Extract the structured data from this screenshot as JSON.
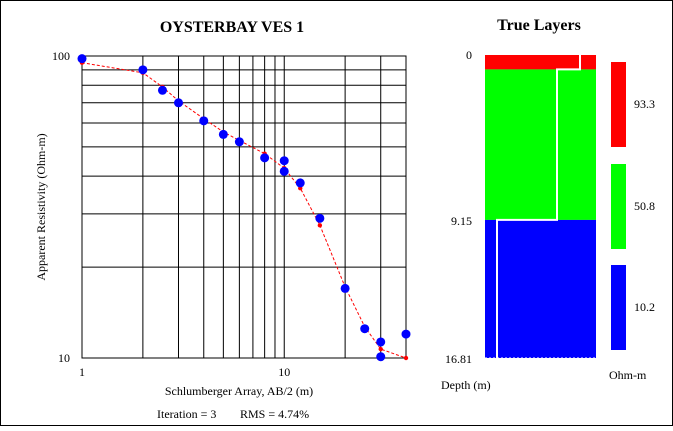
{
  "chart_data": [
    {
      "type": "scatter",
      "title": "OYSTERBAY VES 1",
      "xlabel": "Schlumberger Array, AB/2 (m)",
      "ylabel": "Apparent Resistivity (Ohm-m)",
      "x_scale": "log",
      "y_scale": "log",
      "xlim": [
        1,
        40
      ],
      "ylim": [
        10,
        100
      ],
      "x_tick_labels": [
        "1",
        "10"
      ],
      "y_tick_labels": [
        "100",
        "10"
      ],
      "grid": true,
      "series": [
        {
          "role": "observed",
          "marker": "circle",
          "color": "#0000ff",
          "points": [
            {
              "x": 1,
              "y": 98
            },
            {
              "x": 2,
              "y": 90
            },
            {
              "x": 2.5,
              "y": 77
            },
            {
              "x": 3,
              "y": 70
            },
            {
              "x": 4,
              "y": 61
            },
            {
              "x": 5,
              "y": 55
            },
            {
              "x": 6,
              "y": 52
            },
            {
              "x": 8,
              "y": 46
            },
            {
              "x": 10,
              "y": 45
            },
            {
              "x": 10,
              "y": 41.5
            },
            {
              "x": 12,
              "y": 38
            },
            {
              "x": 15,
              "y": 29
            },
            {
              "x": 20,
              "y": 17
            },
            {
              "x": 25,
              "y": 12.5
            },
            {
              "x": 30,
              "y": 11.3
            },
            {
              "x": 30,
              "y": 10.1
            },
            {
              "x": 40,
              "y": 12
            }
          ]
        },
        {
          "role": "model",
          "marker": "dot",
          "line": "dashed",
          "color": "#ff0000",
          "points": [
            {
              "x": 1,
              "y": 95
            },
            {
              "x": 2,
              "y": 88
            },
            {
              "x": 2.5,
              "y": 79
            },
            {
              "x": 3,
              "y": 71
            },
            {
              "x": 4,
              "y": 62
            },
            {
              "x": 5,
              "y": 56
            },
            {
              "x": 6,
              "y": 52.5
            },
            {
              "x": 8,
              "y": 47.5
            },
            {
              "x": 10,
              "y": 42.5
            },
            {
              "x": 12,
              "y": 36.5
            },
            {
              "x": 15,
              "y": 27.5
            },
            {
              "x": 20,
              "y": 17.2
            },
            {
              "x": 25,
              "y": 12.7
            },
            {
              "x": 30,
              "y": 10.7
            },
            {
              "x": 40,
              "y": 10
            }
          ]
        }
      ],
      "footer": {
        "iteration": "Iteration = 3",
        "rms": "RMS = 4.74%"
      }
    },
    {
      "type": "bar",
      "title": "True Layers",
      "xlabel": "Depth (m)",
      "depth_labels": [
        "0",
        "9.15",
        "16.81"
      ],
      "layers": [
        {
          "top": 0,
          "bottom": 0.8,
          "resistivity": 93.3,
          "color": "#ff0000"
        },
        {
          "top": 0.8,
          "bottom": 9.15,
          "resistivity": 50.8,
          "color": "#00ff00"
        },
        {
          "top": 9.15,
          "bottom": 16.81,
          "resistivity": 10.2,
          "color": "#0000ff"
        }
      ],
      "legend": {
        "unit": "Ohm-m",
        "items": [
          {
            "label": "93.3",
            "color": "#ff0000"
          },
          {
            "label": "50.8",
            "color": "#00ff00"
          },
          {
            "label": "10.2",
            "color": "#0000ff"
          }
        ]
      }
    }
  ]
}
